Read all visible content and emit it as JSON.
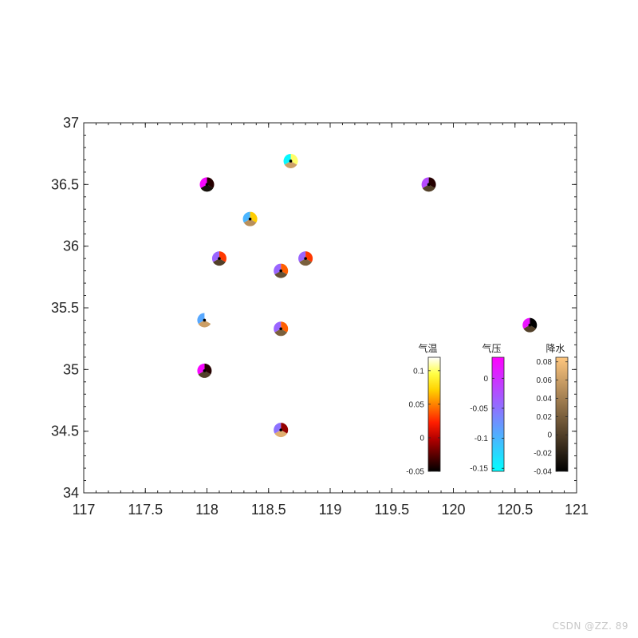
{
  "chart_data": {
    "type": "scatter",
    "title": "",
    "xlabel": "",
    "ylabel": "",
    "xlim": [
      117,
      121
    ],
    "ylim": [
      34,
      37
    ],
    "xticks": [
      117,
      117.5,
      118,
      118.5,
      119,
      119.5,
      120,
      120.5,
      121
    ],
    "xtick_labels": [
      "117",
      "117.5",
      "118",
      "118.5",
      "119",
      "119.5",
      "120",
      "120.5",
      "121"
    ],
    "yticks": [
      34,
      34.5,
      35,
      35.5,
      36,
      36.5,
      37
    ],
    "ytick_labels": [
      "34",
      "34.5",
      "35",
      "35.5",
      "36",
      "36.5",
      "37"
    ],
    "grid": false,
    "variables": [
      "气温",
      "气压",
      "降水"
    ],
    "stations": [
      {
        "lon": 118.68,
        "lat": 36.69,
        "temp": 0.1,
        "pres": -0.15,
        "prec": 0.06
      },
      {
        "lon": 118.0,
        "lat": 36.5,
        "temp": -0.04,
        "pres": 0.03,
        "prec": -0.03
      },
      {
        "lon": 119.8,
        "lat": 36.5,
        "temp": -0.04,
        "pres": -0.02,
        "prec": 0.0
      },
      {
        "lon": 118.35,
        "lat": 36.22,
        "temp": 0.07,
        "pres": -0.1,
        "prec": 0.05
      },
      {
        "lon": 118.1,
        "lat": 35.9,
        "temp": 0.03,
        "pres": -0.04,
        "prec": 0.0
      },
      {
        "lon": 118.8,
        "lat": 35.9,
        "temp": 0.03,
        "pres": -0.04,
        "prec": 0.02
      },
      {
        "lon": 118.6,
        "lat": 35.8,
        "temp": 0.04,
        "pres": -0.04,
        "prec": 0.01
      },
      {
        "lon": 117.98,
        "lat": 35.4,
        "temp": 0.12,
        "pres": -0.09,
        "prec": 0.06
      },
      {
        "lon": 118.6,
        "lat": 35.33,
        "temp": 0.04,
        "pres": -0.04,
        "prec": 0.02
      },
      {
        "lon": 120.62,
        "lat": 35.36,
        "temp": -0.05,
        "pres": 0.02,
        "prec": 0.0
      },
      {
        "lon": 117.98,
        "lat": 34.99,
        "temp": -0.04,
        "pres": 0.03,
        "prec": 0.0
      },
      {
        "lon": 118.6,
        "lat": 34.51,
        "temp": -0.01,
        "pres": -0.05,
        "prec": 0.07
      }
    ],
    "colorbars": [
      {
        "title": "气温",
        "colormap": "hot",
        "min": -0.05,
        "max": 0.12,
        "ticks": [
          0.1,
          0.05,
          0,
          -0.05
        ],
        "tick_labels": [
          "0.1",
          "0.05",
          "0",
          "-0.05"
        ],
        "colors": [
          "#000000",
          "#5a0000",
          "#b40000",
          "#ff1e00",
          "#ff7800",
          "#ffd200",
          "#ffff46",
          "#ffffff"
        ]
      },
      {
        "title": "气压",
        "colormap": "cool",
        "min": -0.155,
        "max": 0.035,
        "ticks": [
          0,
          -0.05,
          -0.1,
          -0.15
        ],
        "tick_labels": [
          "0",
          "-0.05",
          "-0.1",
          "-0.15"
        ],
        "colors": [
          "#00ffff",
          "#ff00ff"
        ]
      },
      {
        "title": "降水",
        "colormap": "copper",
        "min": -0.04,
        "max": 0.085,
        "ticks": [
          0.08,
          0.06,
          0.04,
          0.02,
          0,
          -0.02,
          -0.04
        ],
        "tick_labels": [
          "0.08",
          "0.06",
          "0.04",
          "0.02",
          "0",
          "-0.02",
          "-0.04"
        ],
        "colors": [
          "#000000",
          "#ffc77f"
        ]
      }
    ]
  },
  "watermark": "CSDN @ZZ. 89"
}
